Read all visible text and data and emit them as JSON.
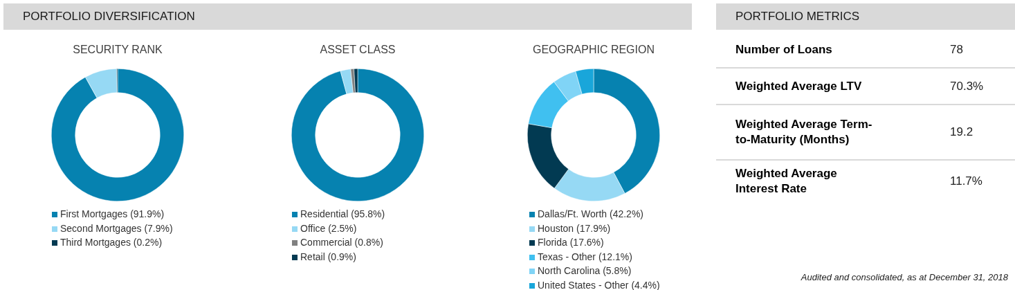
{
  "chart_data": [
    {
      "type": "donut",
      "title": "SECURITY RANK",
      "annotations": [
        "PORTFOLIO DIVERSIFICATION"
      ],
      "legend": "bottom",
      "categories": [
        "First Mortgages (91.9%)",
        "Second Mortgages (7.9%)",
        "Third Mortgages (0.2%)"
      ],
      "values": [
        91.9,
        7.9,
        0.2
      ],
      "colors": [
        "#0682b0",
        "#96d9f4",
        "#023a52"
      ]
    },
    {
      "type": "donut",
      "title": "ASSET CLASS",
      "legend": "bottom",
      "categories": [
        "Residential (95.8%)",
        "Office (2.5%)",
        "Commercial (0.8%)",
        "Retail (0.9%)"
      ],
      "values": [
        95.8,
        2.5,
        0.8,
        0.9
      ],
      "colors": [
        "#0682b0",
        "#96d9f4",
        "#808080",
        "#023a52"
      ]
    },
    {
      "type": "donut",
      "title": "GEOGRAPHIC REGION",
      "legend": "bottom",
      "categories": [
        "Dallas/Ft. Worth (42.2%)",
        "Houston (17.9%)",
        "Florida (17.6%)",
        "Texas - Other (12.1%)",
        "North Carolina (5.8%)",
        "United States - Other (4.4%)"
      ],
      "values": [
        42.2,
        17.9,
        17.6,
        12.1,
        5.8,
        4.4
      ],
      "colors": [
        "#0682b0",
        "#96d9f4",
        "#023a52",
        "#40c0f0",
        "#80d4f6",
        "#19a6da"
      ]
    },
    {
      "type": "other",
      "title": "PORTFOLIO METRICS",
      "categories": [
        "Number of Loans",
        "Weighted Average LTV",
        "Weighted Average Term-to-Maturity (Months)",
        "Weighted Average Interest Rate"
      ],
      "value_labels": [
        "78",
        "70.3%",
        "19.2",
        "11.7%"
      ],
      "annotations": [
        "Audited and consolidated, as at December 31, 2018"
      ]
    }
  ]
}
